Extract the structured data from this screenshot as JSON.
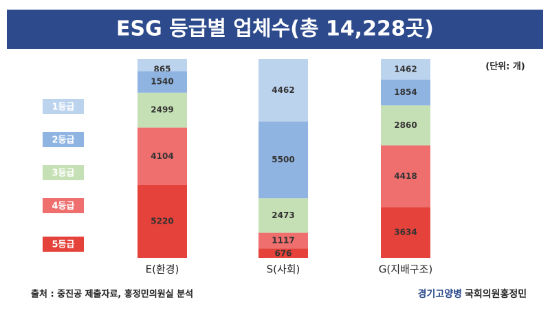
{
  "chart_data": {
    "type": "stacked_bar",
    "title": "ESG 등급별 업체수(총 14,228곳)",
    "unit_note": "(단위: 개)",
    "categories": [
      "E(환경)",
      "S(사회)",
      "G(지배구조)"
    ],
    "series": [
      {
        "name": "1등급",
        "color": "#bcd3ee",
        "values": [
          865,
          4462,
          1462
        ]
      },
      {
        "name": "2등급",
        "color": "#8fb4e2",
        "values": [
          1540,
          5500,
          1854
        ]
      },
      {
        "name": "3등급",
        "color": "#c6e0b5",
        "values": [
          2499,
          2473,
          2860
        ]
      },
      {
        "name": "4등급",
        "color": "#ef6e6e",
        "values": [
          4104,
          1117,
          4418
        ]
      },
      {
        "name": "5등급",
        "color": "#e4423a",
        "values": [
          5220,
          676,
          3634
        ]
      }
    ],
    "ylim": [
      0,
      14228
    ]
  },
  "footer": {
    "source": "출처 : 중진공 제출자료, 홍정민의원실 분석",
    "credit_region": "경기고양병",
    "credit_name": "국회의원홍정민"
  }
}
